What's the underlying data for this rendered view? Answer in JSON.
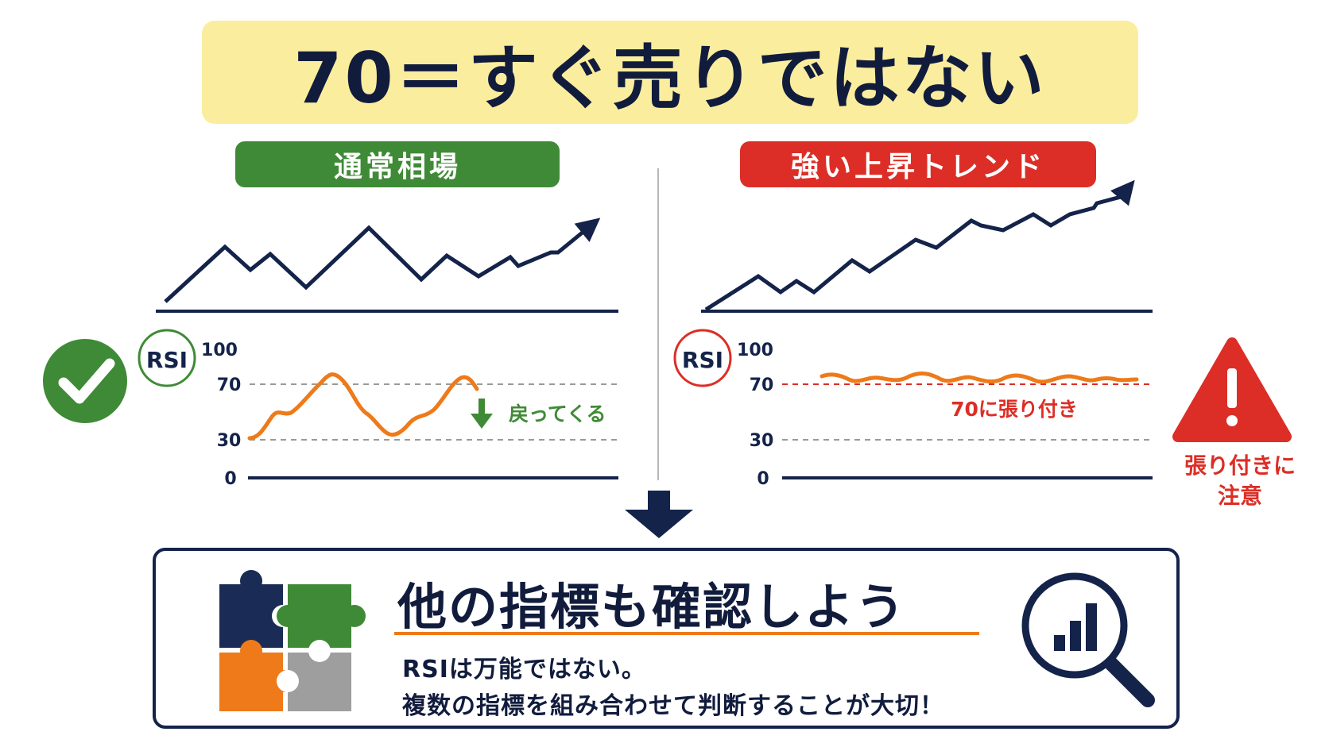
{
  "title": "70＝すぐ売りではない",
  "left_panel": {
    "label": "通常相場",
    "rsi_badge": "RSI",
    "ticks": [
      "100",
      "70",
      "30",
      "0"
    ],
    "annotation": "戻ってくる"
  },
  "right_panel": {
    "label": "強い上昇トレンド",
    "rsi_badge": "RSI",
    "ticks": [
      "100",
      "70",
      "30",
      "0"
    ],
    "annotation": "70に張り付き",
    "warning_line1": "張り付きに",
    "warning_line2": "注意"
  },
  "bottom": {
    "heading": "他の指標も確認しよう",
    "line1": "RSIは万能ではない。",
    "line2": "複数の指標を組み合わせて判断することが大切！"
  },
  "colors": {
    "navy": "#14234a",
    "green": "#3f8a36",
    "red": "#dc2e26",
    "orange": "#ee7a1a",
    "title_bg": "#fbed9e",
    "gray": "#9a9a9a"
  },
  "icons": [
    "check-circle-icon",
    "warning-triangle-icon",
    "down-arrow-icon",
    "puzzle-icon",
    "magnifier-chart-icon"
  ]
}
